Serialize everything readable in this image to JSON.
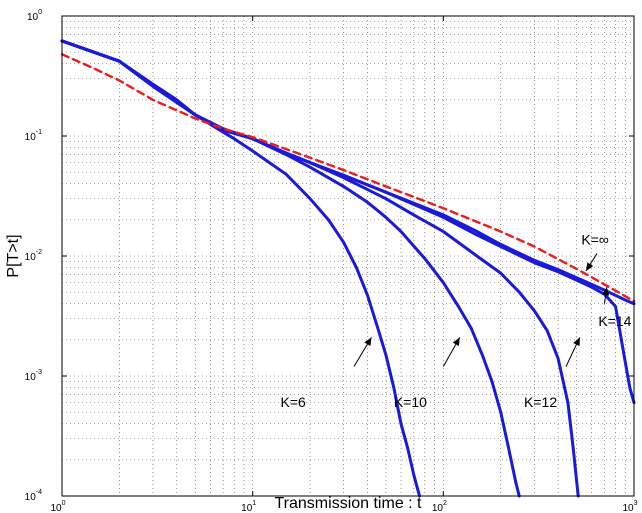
{
  "chart_data": {
    "type": "line",
    "title": "",
    "xlabel": "Transmission time : t",
    "ylabel": "P[T>t]",
    "x_scale": "log",
    "y_scale": "log",
    "xlim": [
      1,
      1000
    ],
    "ylim": [
      0.0001,
      1
    ],
    "grid": true,
    "x_ticks": [
      {
        "value": 1,
        "base": "10",
        "exp": "0"
      },
      {
        "value": 10,
        "base": "10",
        "exp": "1"
      },
      {
        "value": 100,
        "base": "10",
        "exp": "2"
      },
      {
        "value": 1000,
        "base": "10",
        "exp": "3"
      }
    ],
    "y_ticks": [
      {
        "value": 0.0001,
        "base": "10",
        "exp": "-4"
      },
      {
        "value": 0.001,
        "base": "10",
        "exp": "-3"
      },
      {
        "value": 0.01,
        "base": "10",
        "exp": "-2"
      },
      {
        "value": 0.1,
        "base": "10",
        "exp": "-1"
      },
      {
        "value": 1,
        "base": "10",
        "exp": "0"
      }
    ],
    "colors": {
      "finite_k": "#1a1adc",
      "infinite_k": "#ee1c1c"
    },
    "series": [
      {
        "label": "K=6",
        "color": "#1a1adc",
        "style": "solid",
        "points": [
          [
            1,
            0.62
          ],
          [
            2,
            0.42
          ],
          [
            3,
            0.27
          ],
          [
            4,
            0.2
          ],
          [
            5,
            0.15
          ],
          [
            6,
            0.125
          ],
          [
            8,
            0.095
          ],
          [
            10,
            0.075
          ],
          [
            15,
            0.048
          ],
          [
            20,
            0.03
          ],
          [
            25,
            0.02
          ],
          [
            30,
            0.013
          ],
          [
            35,
            0.008
          ],
          [
            40,
            0.0047
          ],
          [
            45,
            0.0026
          ],
          [
            50,
            0.0015
          ],
          [
            55,
            0.0008
          ],
          [
            60,
            0.0004
          ],
          [
            65,
            0.00025
          ],
          [
            70,
            0.00015
          ],
          [
            75,
            0.0001
          ]
        ]
      },
      {
        "label": "K=10",
        "color": "#1a1adc",
        "style": "solid",
        "points": [
          [
            1,
            0.62
          ],
          [
            2,
            0.42
          ],
          [
            3,
            0.26
          ],
          [
            5,
            0.15
          ],
          [
            7,
            0.115
          ],
          [
            10,
            0.095
          ],
          [
            15,
            0.07
          ],
          [
            20,
            0.055
          ],
          [
            30,
            0.038
          ],
          [
            40,
            0.028
          ],
          [
            50,
            0.021
          ],
          [
            60,
            0.016
          ],
          [
            80,
            0.0095
          ],
          [
            100,
            0.006
          ],
          [
            120,
            0.0038
          ],
          [
            140,
            0.0025
          ],
          [
            160,
            0.0015
          ],
          [
            180,
            0.0009
          ],
          [
            200,
            0.0005
          ],
          [
            220,
            0.00025
          ],
          [
            240,
            0.00013
          ],
          [
            250,
            0.0001
          ]
        ]
      },
      {
        "label": "K=12",
        "color": "#1a1adc",
        "style": "solid",
        "points": [
          [
            1,
            0.62
          ],
          [
            2,
            0.42
          ],
          [
            3,
            0.26
          ],
          [
            5,
            0.15
          ],
          [
            7,
            0.113
          ],
          [
            10,
            0.095
          ],
          [
            15,
            0.072
          ],
          [
            20,
            0.06
          ],
          [
            30,
            0.045
          ],
          [
            50,
            0.03
          ],
          [
            70,
            0.022
          ],
          [
            100,
            0.016
          ],
          [
            150,
            0.01
          ],
          [
            200,
            0.0072
          ],
          [
            250,
            0.005
          ],
          [
            300,
            0.0035
          ],
          [
            350,
            0.0024
          ],
          [
            400,
            0.0014
          ],
          [
            450,
            0.0006
          ],
          [
            480,
            0.00025
          ],
          [
            510,
            0.0001
          ]
        ]
      },
      {
        "label": "K=14",
        "color": "#1a1adc",
        "style": "solid",
        "points": [
          [
            1,
            0.62
          ],
          [
            2,
            0.42
          ],
          [
            3,
            0.26
          ],
          [
            5,
            0.15
          ],
          [
            7,
            0.112
          ],
          [
            10,
            0.095
          ],
          [
            15,
            0.072
          ],
          [
            20,
            0.06
          ],
          [
            30,
            0.047
          ],
          [
            50,
            0.034
          ],
          [
            100,
            0.021
          ],
          [
            150,
            0.015
          ],
          [
            200,
            0.012
          ],
          [
            300,
            0.0088
          ],
          [
            400,
            0.0074
          ],
          [
            500,
            0.0063
          ],
          [
            600,
            0.0055
          ],
          [
            700,
            0.0048
          ],
          [
            800,
            0.0038
          ],
          [
            850,
            0.0022
          ],
          [
            900,
            0.0013
          ],
          [
            950,
            0.0008
          ],
          [
            1000,
            0.0006
          ]
        ]
      },
      {
        "label": "K=14b",
        "color": "#1a1adc",
        "style": "solid",
        "points": [
          [
            1,
            0.62
          ],
          [
            2,
            0.42
          ],
          [
            3,
            0.26
          ],
          [
            5,
            0.15
          ],
          [
            7,
            0.112
          ],
          [
            10,
            0.095
          ],
          [
            15,
            0.072
          ],
          [
            20,
            0.06
          ],
          [
            30,
            0.047
          ],
          [
            50,
            0.034
          ],
          [
            100,
            0.022
          ],
          [
            150,
            0.016
          ],
          [
            200,
            0.0125
          ],
          [
            300,
            0.0092
          ],
          [
            400,
            0.0077
          ],
          [
            500,
            0.0066
          ],
          [
            600,
            0.0058
          ],
          [
            700,
            0.0052
          ],
          [
            800,
            0.0047
          ],
          [
            900,
            0.0043
          ],
          [
            1000,
            0.004
          ]
        ]
      },
      {
        "label": "K=∞",
        "color": "#ee1c1c",
        "style": "dashed",
        "points": [
          [
            1,
            0.48
          ],
          [
            1.5,
            0.36
          ],
          [
            2,
            0.29
          ],
          [
            3,
            0.2
          ],
          [
            5,
            0.14
          ],
          [
            7,
            0.115
          ],
          [
            10,
            0.098
          ],
          [
            20,
            0.066
          ],
          [
            30,
            0.052
          ],
          [
            50,
            0.038
          ],
          [
            100,
            0.025
          ],
          [
            200,
            0.016
          ],
          [
            300,
            0.012
          ],
          [
            500,
            0.0078
          ],
          [
            700,
            0.0058
          ],
          [
            1000,
            0.0042
          ]
        ]
      }
    ],
    "annotations": [
      {
        "text": "K=6",
        "text_at": [
          14,
          0.00055
        ],
        "arrow_from": [
          34,
          0.0012
        ],
        "arrow_to": [
          42,
          0.0021
        ]
      },
      {
        "text": "K=10",
        "text_at": [
          55,
          0.00055
        ],
        "arrow_from": [
          100,
          0.0012
        ],
        "arrow_to": [
          122,
          0.0021
        ]
      },
      {
        "text": "K=12",
        "text_at": [
          265,
          0.00055
        ],
        "arrow_from": [
          440,
          0.0012
        ],
        "arrow_to": [
          520,
          0.0021
        ]
      },
      {
        "text": "K=14",
        "text_at": [
          650,
          0.0026
        ],
        "arrow_from": [
          700,
          0.004
        ],
        "arrow_to": [
          720,
          0.0055
        ]
      },
      {
        "text": "K=∞",
        "text_at": [
          530,
          0.0125
        ],
        "arrow_from": [
          640,
          0.0105
        ],
        "arrow_to": [
          560,
          0.0075
        ]
      }
    ]
  }
}
